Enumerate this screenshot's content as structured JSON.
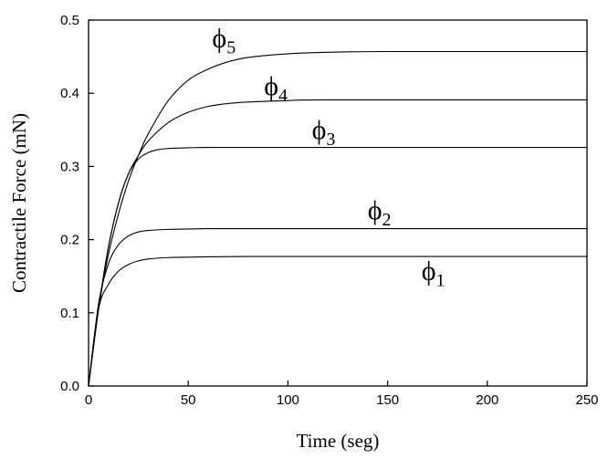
{
  "chart_data": {
    "type": "line",
    "title": "",
    "xlabel": "Time (seg)",
    "ylabel": "Contractile Force (mN)",
    "xlim": [
      0,
      250
    ],
    "ylim": [
      0,
      0.5
    ],
    "xticks": [
      0,
      50,
      100,
      150,
      200,
      250
    ],
    "yticks": [
      0.0,
      0.1,
      0.2,
      0.3,
      0.4,
      0.5
    ],
    "xtick_labels": [
      "0",
      "50",
      "100",
      "150",
      "200",
      "250"
    ],
    "ytick_labels": [
      "0.0",
      "0.1",
      "0.2",
      "0.3",
      "0.4",
      "0.5"
    ],
    "grid": false,
    "legend": "none",
    "series": [
      {
        "name": "ϕ1",
        "label_symbol": "ϕ",
        "label_sub": "1",
        "label_at": [
          167,
          0.145
        ],
        "x": [
          0,
          5,
          10,
          15,
          20,
          25,
          30,
          40,
          50,
          60,
          80,
          100,
          250
        ],
        "y": [
          0.0,
          0.105,
          0.139,
          0.157,
          0.166,
          0.171,
          0.1735,
          0.1755,
          0.176,
          0.1765,
          0.177,
          0.177,
          0.177
        ]
      },
      {
        "name": "ϕ2",
        "label_symbol": "ϕ",
        "label_sub": "2",
        "label_at": [
          140,
          0.228
        ],
        "x": [
          0,
          5,
          10,
          15,
          20,
          25,
          30,
          40,
          50,
          60,
          80,
          100,
          250
        ],
        "y": [
          0.0,
          0.112,
          0.167,
          0.193,
          0.205,
          0.2105,
          0.2125,
          0.214,
          0.2145,
          0.215,
          0.215,
          0.215,
          0.215
        ]
      },
      {
        "name": "ϕ3",
        "label_symbol": "ϕ",
        "label_sub": "3",
        "label_at": [
          112,
          0.338
        ],
        "x": [
          0,
          5,
          10,
          15,
          20,
          25,
          30,
          35,
          40,
          50,
          60,
          80,
          100,
          250
        ],
        "y": [
          0.0,
          0.105,
          0.19,
          0.25,
          0.29,
          0.31,
          0.319,
          0.323,
          0.3245,
          0.3255,
          0.326,
          0.326,
          0.326,
          0.326
        ]
      },
      {
        "name": "ϕ4",
        "label_symbol": "ϕ",
        "label_sub": "4",
        "label_at": [
          88,
          0.398
        ],
        "x": [
          0,
          5,
          10,
          15,
          20,
          25,
          30,
          40,
          50,
          60,
          70,
          80,
          100,
          120,
          250
        ],
        "y": [
          0.0,
          0.105,
          0.19,
          0.25,
          0.29,
          0.315,
          0.335,
          0.36,
          0.374,
          0.382,
          0.386,
          0.388,
          0.39,
          0.391,
          0.391
        ]
      },
      {
        "name": "ϕ5",
        "label_symbol": "ϕ",
        "label_sub": "5",
        "label_at": [
          62,
          0.463
        ],
        "x": [
          0,
          5,
          10,
          15,
          20,
          25,
          30,
          40,
          50,
          60,
          70,
          80,
          100,
          120,
          150,
          250
        ],
        "y": [
          0.0,
          0.105,
          0.18,
          0.235,
          0.28,
          0.315,
          0.345,
          0.39,
          0.418,
          0.433,
          0.443,
          0.449,
          0.454,
          0.456,
          0.457,
          0.457
        ]
      }
    ]
  }
}
